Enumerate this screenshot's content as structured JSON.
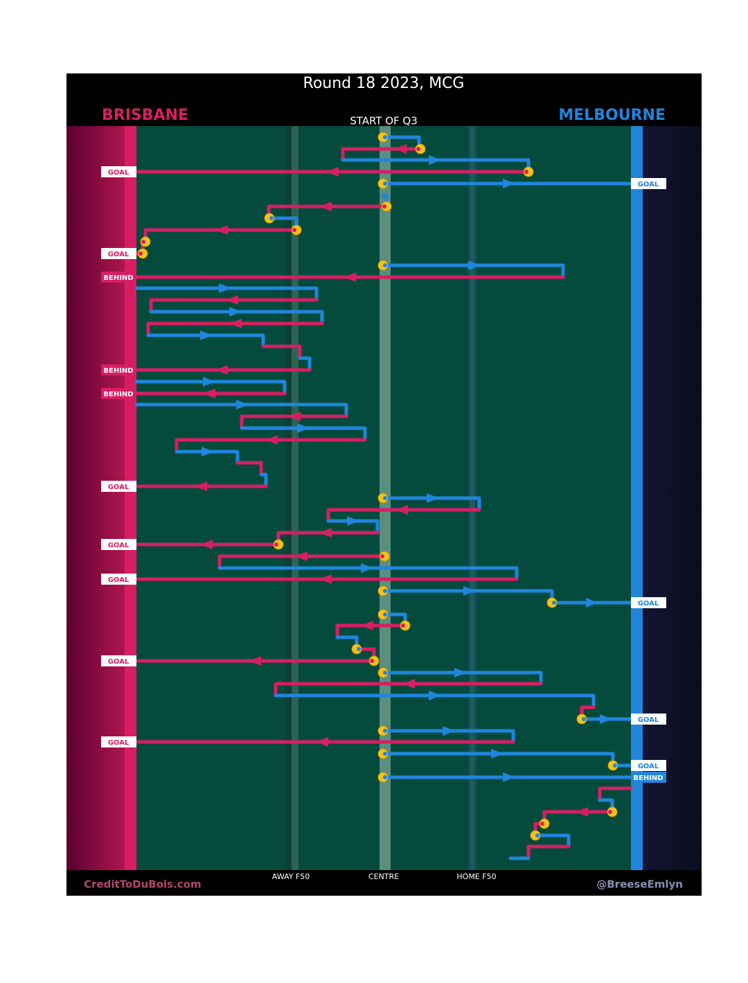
{
  "header": {
    "title": "Round 18 2023, MCG",
    "home_team": "BRISBANE",
    "away_team": "MELBOURNE",
    "period": "START OF Q3"
  },
  "field": {
    "lanes": [
      "AWAY F50",
      "CENTRE",
      "HOME F50"
    ]
  },
  "results": {
    "left": [
      "GOAL",
      "GOAL",
      "BEHIND",
      "BEHIND",
      "BEHIND",
      "GOAL",
      "GOAL",
      "GOAL",
      "GOAL",
      "GOAL"
    ],
    "right": [
      "GOAL",
      "GOAL",
      "GOAL",
      "GOAL",
      "BEHIND"
    ]
  },
  "footer": {
    "left": "CreditToDuBois.com",
    "right": "@BreeseEmlyn"
  }
}
